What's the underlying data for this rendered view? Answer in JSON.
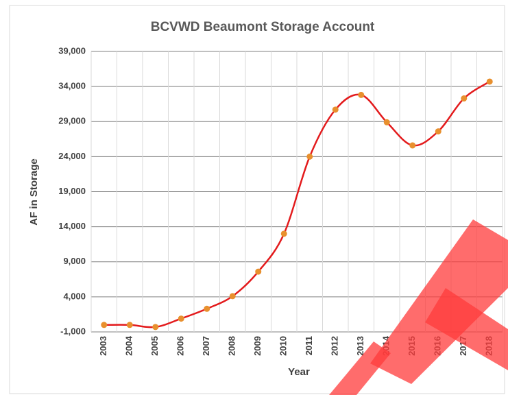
{
  "chart_data": {
    "type": "line",
    "title": "BCVWD Beaumont Storage Account",
    "x_label": "Year",
    "y_label": "AF in Storage",
    "categories": [
      "2003",
      "2004",
      "2005",
      "2006",
      "2007",
      "2008",
      "2009",
      "2010",
      "2011",
      "2012",
      "2013",
      "2014",
      "2015",
      "2016",
      "2017",
      "2018"
    ],
    "series": [
      {
        "name": "AF in Storage",
        "color": "#e31a1c",
        "marker_color": "#e8902e",
        "values": [
          0,
          0,
          -300,
          900,
          2300,
          4100,
          7600,
          13000,
          24000,
          30700,
          32800,
          28900,
          25600,
          27600,
          32300,
          34700
        ]
      }
    ],
    "ylim": [
      -1000,
      39000
    ],
    "yticks": [
      {
        "value": -1000,
        "label": "-1,000"
      },
      {
        "value": 4000,
        "label": "4,000"
      },
      {
        "value": 9000,
        "label": "9,000"
      },
      {
        "value": 14000,
        "label": "14,000"
      },
      {
        "value": 19000,
        "label": "19,000"
      },
      {
        "value": 24000,
        "label": "24,000"
      },
      {
        "value": 29000,
        "label": "29,000"
      },
      {
        "value": 34000,
        "label": "34,000"
      },
      {
        "value": 39000,
        "label": "39,000"
      }
    ],
    "grid": true,
    "smooth": true
  }
}
